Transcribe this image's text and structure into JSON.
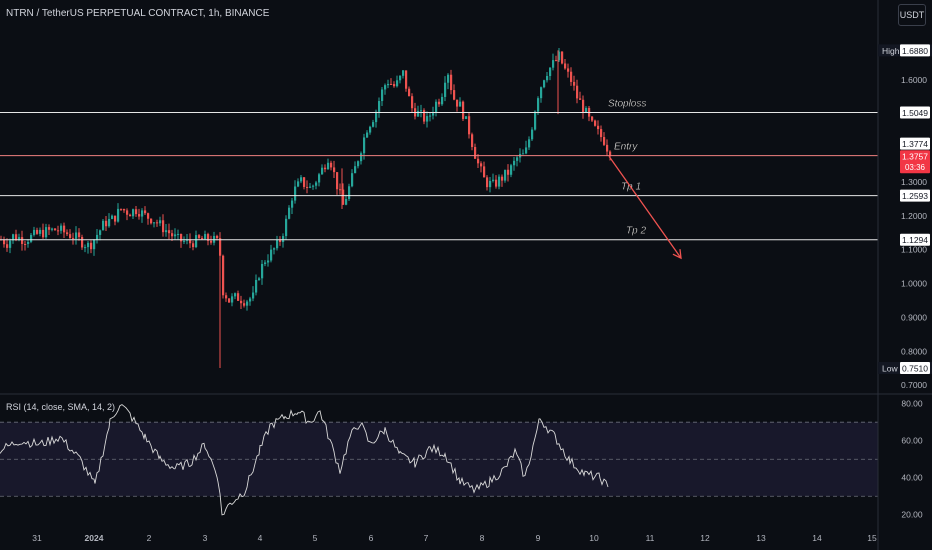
{
  "header": {
    "symbol_title": "NTRN / TetherUS PERPETUAL CONTRACT, 1h, BINANCE",
    "currency": "USDT"
  },
  "chart_data": [
    {
      "type": "candlestick",
      "price_ticks": [
        "1.6000",
        "1.3000",
        "1.2000",
        "1.1000",
        "1.0000",
        "0.9000",
        "0.8000",
        "0.7000"
      ],
      "price_range": [
        0.68,
        1.76
      ],
      "x_ticks": [
        "31",
        "2024",
        "2",
        "3",
        "4",
        "5",
        "6",
        "7",
        "8",
        "9",
        "10",
        "11",
        "12",
        "13",
        "14",
        "15"
      ],
      "badges": {
        "high": {
          "label": "High",
          "value": "1.6880",
          "price": 1.688
        },
        "low": {
          "label": "Low",
          "value": "0.7510",
          "price": 0.751
        },
        "current": {
          "value": "1.3757",
          "countdown": "03:36",
          "price": 1.3757
        },
        "entry_price": {
          "value": "1.3774",
          "price": 1.3774
        }
      },
      "levels": [
        {
          "name": "Stoploss",
          "price": 1.5049,
          "value": "1.5049"
        },
        {
          "name": "Entry",
          "price": 1.3774,
          "value": ""
        },
        {
          "name": "Tp 1",
          "price": 1.2593,
          "value": "1.2593"
        },
        {
          "name": "Tp 2",
          "price": 1.1294,
          "value": "1.1294"
        }
      ],
      "ohlc_path": [
        [
          0,
          1.13
        ],
        [
          6,
          1.12
        ],
        [
          12,
          1.14
        ],
        [
          24,
          1.13
        ],
        [
          40,
          1.15
        ],
        [
          56,
          1.16
        ],
        [
          72,
          1.14
        ],
        [
          88,
          1.11
        ],
        [
          104,
          1.18
        ],
        [
          112,
          1.19
        ],
        [
          120,
          1.22
        ],
        [
          128,
          1.21
        ],
        [
          136,
          1.22
        ],
        [
          144,
          1.2
        ],
        [
          152,
          1.19
        ],
        [
          160,
          1.17
        ],
        [
          168,
          1.15
        ],
        [
          176,
          1.13
        ],
        [
          188,
          1.12
        ],
        [
          200,
          1.13
        ],
        [
          210,
          1.13
        ],
        [
          218,
          1.12
        ],
        [
          222,
          0.98
        ],
        [
          228,
          0.95
        ],
        [
          236,
          0.96
        ],
        [
          244,
          0.95
        ],
        [
          252,
          0.96
        ],
        [
          258,
          1.03
        ],
        [
          264,
          1.07
        ],
        [
          270,
          1.09
        ],
        [
          278,
          1.12
        ],
        [
          284,
          1.17
        ],
        [
          292,
          1.27
        ],
        [
          300,
          1.3
        ],
        [
          310,
          1.28
        ],
        [
          320,
          1.33
        ],
        [
          328,
          1.38
        ],
        [
          335,
          1.3
        ],
        [
          342,
          1.23
        ],
        [
          350,
          1.3
        ],
        [
          358,
          1.38
        ],
        [
          366,
          1.46
        ],
        [
          374,
          1.5
        ],
        [
          380,
          1.56
        ],
        [
          386,
          1.6
        ],
        [
          394,
          1.58
        ],
        [
          402,
          1.62
        ],
        [
          410,
          1.52
        ],
        [
          418,
          1.5
        ],
        [
          426,
          1.48
        ],
        [
          434,
          1.53
        ],
        [
          440,
          1.55
        ],
        [
          446,
          1.64
        ],
        [
          452,
          1.55
        ],
        [
          460,
          1.52
        ],
        [
          468,
          1.45
        ],
        [
          476,
          1.36
        ],
        [
          484,
          1.3
        ],
        [
          492,
          1.29
        ],
        [
          500,
          1.31
        ],
        [
          508,
          1.33
        ],
        [
          516,
          1.37
        ],
        [
          524,
          1.38
        ],
        [
          530,
          1.45
        ],
        [
          536,
          1.55
        ],
        [
          544,
          1.62
        ],
        [
          550,
          1.64
        ],
        [
          558,
          1.67
        ],
        [
          564,
          1.63
        ],
        [
          570,
          1.6
        ],
        [
          576,
          1.55
        ],
        [
          582,
          1.52
        ],
        [
          590,
          1.47
        ],
        [
          598,
          1.44
        ],
        [
          604,
          1.42
        ],
        [
          609,
          1.3757
        ]
      ],
      "spikes": [
        {
          "x": 220,
          "low": 0.751,
          "high": 1.125
        },
        {
          "x": 342,
          "low": 1.22,
          "high": 1.34
        },
        {
          "x": 558,
          "low": 1.5,
          "high": 1.688
        }
      ],
      "projection": {
        "from_x": 609,
        "from_price": 1.3757,
        "to_x": 681,
        "to_price": 1.075
      }
    },
    {
      "type": "line",
      "series": [
        {
          "name": "RSI (14, close, SMA, 14, 2)"
        }
      ],
      "y_ticks": [
        "80.00",
        "60.00",
        "40.00",
        "20.00"
      ],
      "range": [
        15,
        82
      ],
      "bands": {
        "upper": 70,
        "mid": 50,
        "lower": 30
      },
      "x": [
        0,
        20,
        40,
        60,
        80,
        95,
        110,
        120,
        130,
        145,
        160,
        175,
        190,
        205,
        218,
        222,
        230,
        245,
        260,
        270,
        285,
        298,
        310,
        320,
        330,
        340,
        350,
        360,
        370,
        385,
        400,
        415,
        430,
        445,
        460,
        475,
        490,
        505,
        515,
        525,
        540,
        555,
        570,
        585,
        600,
        608
      ],
      "values": [
        55,
        60,
        58,
        62,
        50,
        36,
        70,
        80,
        74,
        62,
        50,
        45,
        48,
        58,
        40,
        20,
        26,
        33,
        55,
        68,
        73,
        76,
        70,
        76,
        60,
        44,
        62,
        70,
        58,
        66,
        52,
        48,
        56,
        53,
        38,
        33,
        38,
        45,
        54,
        40,
        72,
        62,
        49,
        42,
        40,
        35
      ]
    }
  ],
  "rsi": {
    "title": "RSI (14, close, SMA, 14, 2)"
  },
  "colors": {
    "background": "#0b0e14",
    "up": "#26a69a",
    "down": "#ef5350",
    "level_line": "#e6e6e6",
    "entry_line": "#f08080",
    "projection": "#ef5350",
    "rsi_line": "#d9d9d9",
    "rsi_band": "#1a1a2e"
  }
}
